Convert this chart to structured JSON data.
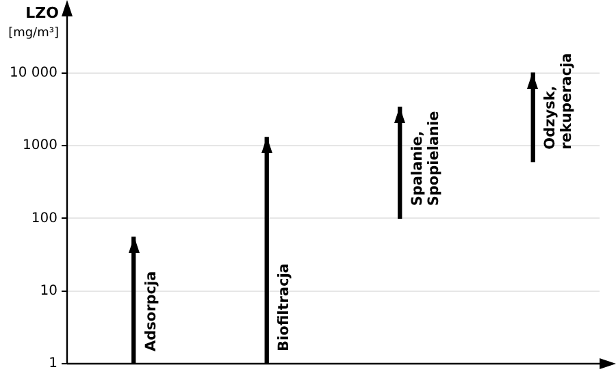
{
  "chart_data": {
    "type": "bar",
    "ylabel": "LZO [mg/m³]",
    "categories": [
      "Adsorpcja",
      "Biofiltracja",
      "Spalanie, Spopielanie",
      "Odzysk, rekuperacja"
    ],
    "base": [
      1,
      1,
      100,
      600
    ],
    "values": [
      54,
      1299,
      3300,
      9400
    ],
    "color": "#000000",
    "log": true,
    "ylim": [
      1,
      60000
    ],
    "yticks": [
      1,
      10,
      100,
      1000,
      {
        "value": 10000,
        "label": "10 000"
      }
    ],
    "grid": "y",
    "legend": false
  }
}
